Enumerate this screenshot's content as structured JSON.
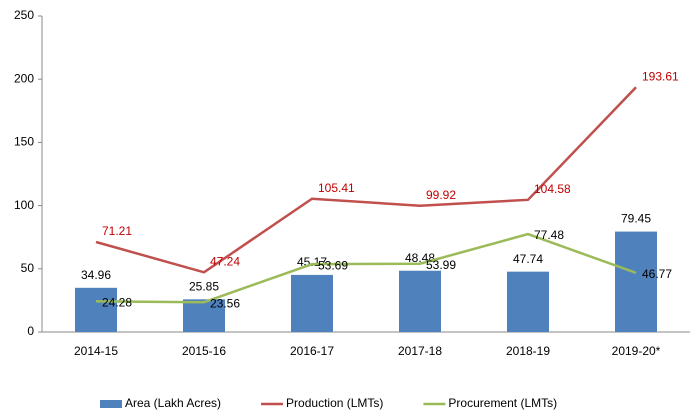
{
  "chart_data": {
    "type": "bar",
    "categories": [
      "2014-15",
      "2015-16",
      "2016-17",
      "2017-18",
      "2018-19",
      "2019-20*"
    ],
    "series": [
      {
        "name": "Area (Lakh Acres)",
        "type": "bar",
        "color": "#4f81bd",
        "label_color": "#000000",
        "values": [
          34.96,
          25.85,
          45.17,
          48.48,
          47.74,
          79.45
        ]
      },
      {
        "name": "Production (LMTs)",
        "type": "line",
        "color": "#c0504d",
        "label_color": "#c00000",
        "values": [
          71.21,
          47.24,
          105.41,
          99.92,
          104.58,
          193.61
        ]
      },
      {
        "name": "Procurement (LMTs)",
        "type": "line",
        "color": "#9bbb59",
        "label_color": "#000000",
        "values": [
          24.28,
          23.56,
          53.69,
          53.99,
          77.48,
          46.77
        ]
      }
    ],
    "ylim": [
      0,
      250
    ],
    "yticks": [
      0,
      50,
      100,
      150,
      200,
      250
    ],
    "grid": false,
    "legend": "bottom"
  }
}
